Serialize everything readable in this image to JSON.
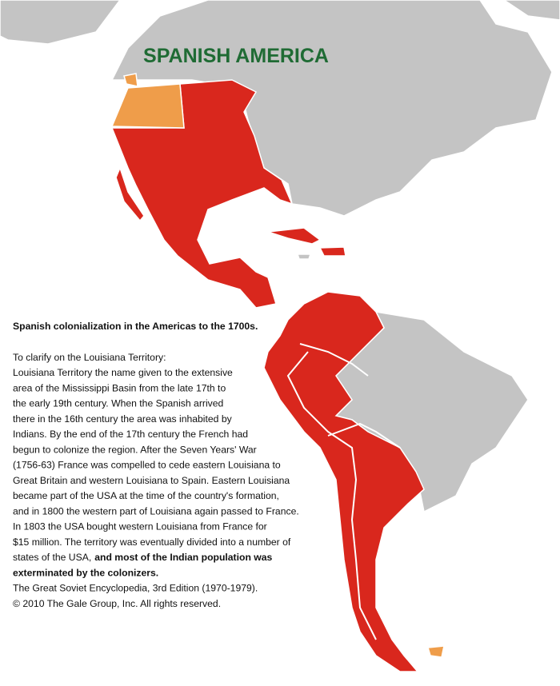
{
  "title": "SPANISH AMERICA",
  "caption": {
    "heading": "Spanish colonialization in the Americas to the 1700s.",
    "intro": "To clarify on the Louisiana Territory:",
    "lines": [
      "Louisiana Territory the name given to the extensive",
      "area of the Mississippi Basin from the late 17th to",
      "the early 19th century. When the Spanish arrived",
      "there in the 16th century the area was inhabited by",
      "Indians. By the end of the 17th century the French had",
      "begun to colonize the region. After the Seven Years' War",
      "(1756-63) France was compelled to cede eastern Louisiana to",
      "Great Britain and western Louisiana to Spain. Eastern Louisiana",
      "became part of the USA at the time of the country's formation,",
      "and in 1800 the western part of Louisiana again passed to France.",
      "In 1803 the USA bought western Louisiana from France for",
      "$15 million. The territory was eventually divided into a number of",
      "states of the USA,"
    ],
    "emphasis": [
      "and most of the Indian population was",
      "exterminated by the colonizers."
    ],
    "source": [
      "The Great Soviet Encyclopedia, 3rd Edition (1970-1979).",
      "© 2010 The Gale Group, Inc. All rights reserved."
    ]
  }
}
